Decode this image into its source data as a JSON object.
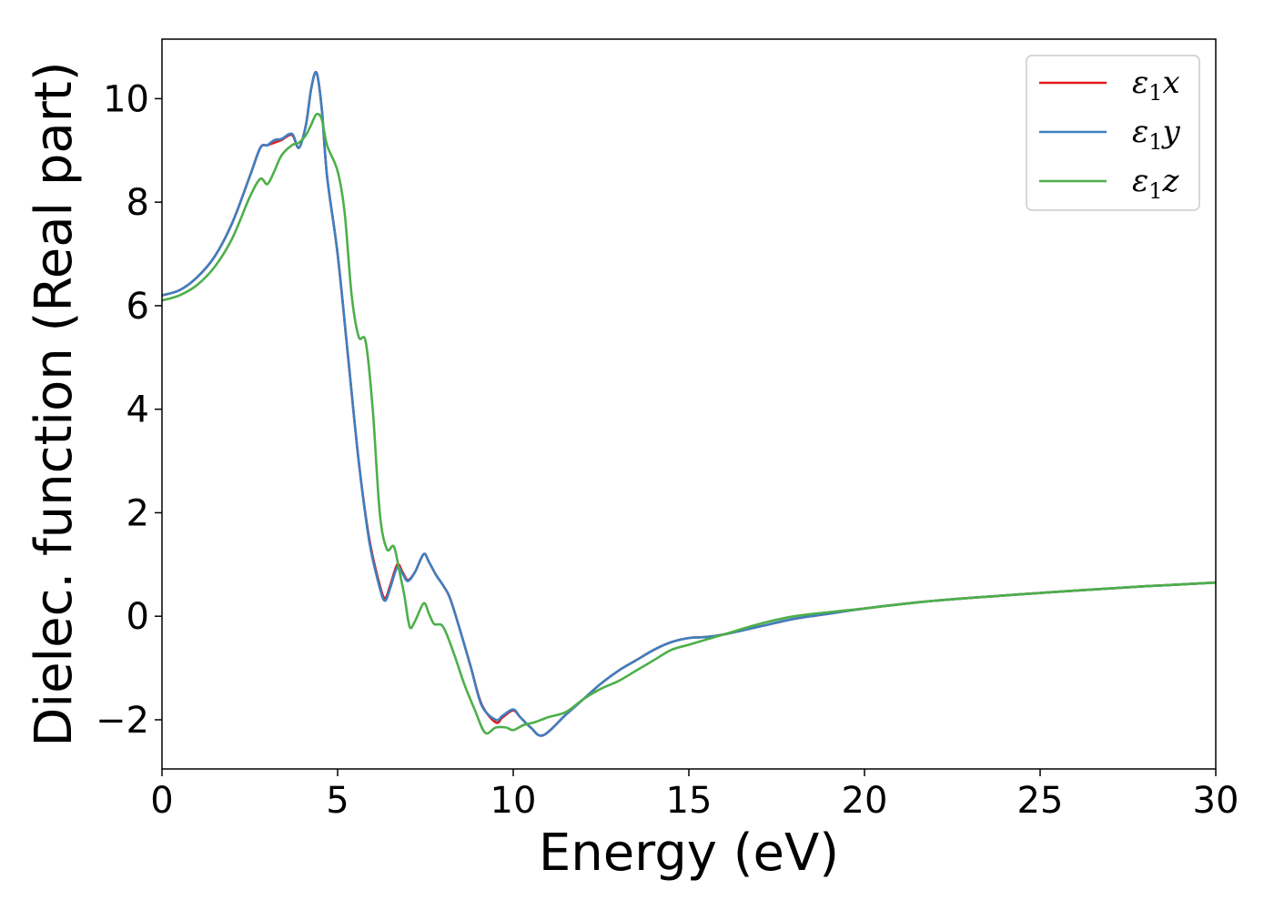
{
  "chart_data": {
    "type": "line",
    "title": "",
    "xlabel": "Energy (eV)",
    "ylabel": "Dielec. function (Real part)",
    "xlim": [
      0,
      30
    ],
    "ylim": [
      -2.95,
      11.15
    ],
    "xticks": [
      0,
      5,
      10,
      15,
      20,
      25,
      30
    ],
    "xtick_labels": [
      "0",
      "5",
      "10",
      "15",
      "20",
      "25",
      "30"
    ],
    "yticks": [
      -2,
      0,
      2,
      4,
      6,
      8,
      10
    ],
    "ytick_labels": [
      "−2",
      "0",
      "2",
      "4",
      "6",
      "8",
      "10"
    ],
    "grid": false,
    "legend_position": "top-right",
    "series": [
      {
        "name": "ε1x",
        "label_main": "ε",
        "label_sub": "1",
        "label_tail": "x",
        "color": "#e41a1c",
        "x": [
          0,
          0.5,
          1,
          1.5,
          2,
          2.5,
          2.8,
          3.0,
          3.2,
          3.4,
          3.7,
          3.9,
          4.1,
          4.25,
          4.4,
          4.55,
          4.7,
          5.0,
          5.3,
          5.6,
          5.9,
          6.2,
          6.35,
          6.5,
          6.7,
          6.85,
          7.0,
          7.2,
          7.45,
          7.6,
          7.8,
          8.0,
          8.2,
          8.5,
          8.8,
          9.1,
          9.5,
          9.7,
          10.0,
          10.2,
          10.5,
          10.85,
          11.5,
          12.0,
          12.5,
          13.0,
          13.5,
          14.0,
          14.5,
          15.0,
          15.5,
          16.0,
          17.0,
          18.0,
          19.0,
          20.0,
          22.0,
          25.0,
          28.0,
          30.0
        ],
        "y": [
          6.2,
          6.3,
          6.55,
          6.95,
          7.6,
          8.5,
          9.05,
          9.1,
          9.15,
          9.2,
          9.3,
          9.05,
          9.5,
          10.2,
          10.5,
          9.8,
          8.5,
          7.0,
          5.0,
          3.0,
          1.5,
          0.6,
          0.35,
          0.6,
          1.0,
          0.85,
          0.7,
          0.85,
          1.2,
          1.05,
          0.8,
          0.6,
          0.35,
          -0.3,
          -1.0,
          -1.7,
          -2.05,
          -1.95,
          -1.82,
          -1.95,
          -2.15,
          -2.3,
          -1.9,
          -1.6,
          -1.3,
          -1.05,
          -0.85,
          -0.65,
          -0.5,
          -0.42,
          -0.4,
          -0.35,
          -0.2,
          -0.05,
          0.05,
          0.15,
          0.3,
          0.45,
          0.58,
          0.65
        ]
      },
      {
        "name": "ε1y",
        "label_main": "ε",
        "label_sub": "1",
        "label_tail": "y",
        "color": "#3f7fbf",
        "x": [
          0,
          0.5,
          1,
          1.5,
          2,
          2.5,
          2.8,
          3.0,
          3.2,
          3.4,
          3.7,
          3.9,
          4.1,
          4.25,
          4.4,
          4.55,
          4.7,
          5.0,
          5.3,
          5.6,
          5.9,
          6.2,
          6.35,
          6.5,
          6.7,
          6.85,
          7.0,
          7.2,
          7.45,
          7.6,
          7.8,
          8.0,
          8.2,
          8.5,
          8.8,
          9.1,
          9.5,
          9.7,
          10.0,
          10.2,
          10.5,
          10.85,
          11.5,
          12.0,
          12.5,
          13.0,
          13.5,
          14.0,
          14.5,
          15.0,
          15.5,
          16.0,
          17.0,
          18.0,
          19.0,
          20.0,
          22.0,
          25.0,
          28.0,
          30.0
        ],
        "y": [
          6.2,
          6.3,
          6.55,
          6.95,
          7.6,
          8.5,
          9.05,
          9.1,
          9.2,
          9.22,
          9.32,
          9.05,
          9.5,
          10.2,
          10.5,
          9.8,
          8.5,
          7.0,
          5.0,
          3.0,
          1.45,
          0.55,
          0.3,
          0.55,
          0.95,
          0.82,
          0.68,
          0.85,
          1.2,
          1.05,
          0.8,
          0.6,
          0.35,
          -0.3,
          -1.0,
          -1.72,
          -2.0,
          -1.92,
          -1.8,
          -1.95,
          -2.15,
          -2.3,
          -1.9,
          -1.6,
          -1.3,
          -1.05,
          -0.85,
          -0.65,
          -0.5,
          -0.42,
          -0.4,
          -0.35,
          -0.2,
          -0.05,
          0.05,
          0.15,
          0.3,
          0.45,
          0.58,
          0.65
        ]
      },
      {
        "name": "ε1z",
        "label_main": "ε",
        "label_sub": "1",
        "label_tail": "z",
        "color": "#4daf4a",
        "x": [
          0,
          0.5,
          1,
          1.5,
          2,
          2.5,
          2.8,
          3.0,
          3.2,
          3.4,
          3.7,
          3.9,
          4.1,
          4.25,
          4.4,
          4.55,
          4.7,
          5.0,
          5.2,
          5.4,
          5.6,
          5.8,
          6.0,
          6.2,
          6.4,
          6.6,
          6.75,
          6.9,
          7.05,
          7.2,
          7.45,
          7.6,
          7.75,
          8.0,
          8.3,
          8.6,
          8.9,
          9.2,
          9.5,
          9.8,
          10.0,
          10.3,
          10.6,
          11.0,
          11.5,
          12.0,
          12.5,
          13.0,
          13.5,
          14.0,
          14.5,
          15.0,
          15.5,
          16.0,
          17.0,
          18.0,
          19.0,
          20.0,
          22.0,
          25.0,
          28.0,
          30.0
        ],
        "y": [
          6.1,
          6.2,
          6.4,
          6.75,
          7.3,
          8.1,
          8.45,
          8.35,
          8.6,
          8.9,
          9.1,
          9.15,
          9.3,
          9.5,
          9.7,
          9.6,
          9.1,
          8.6,
          7.8,
          6.2,
          5.4,
          5.3,
          4.0,
          2.0,
          1.3,
          1.35,
          0.9,
          0.4,
          -0.2,
          -0.1,
          0.25,
          0.05,
          -0.15,
          -0.2,
          -0.7,
          -1.3,
          -1.8,
          -2.25,
          -2.15,
          -2.15,
          -2.2,
          -2.1,
          -2.05,
          -1.95,
          -1.85,
          -1.6,
          -1.4,
          -1.25,
          -1.05,
          -0.85,
          -0.65,
          -0.55,
          -0.45,
          -0.35,
          -0.15,
          0.0,
          0.08,
          0.15,
          0.3,
          0.45,
          0.58,
          0.65
        ]
      }
    ]
  }
}
